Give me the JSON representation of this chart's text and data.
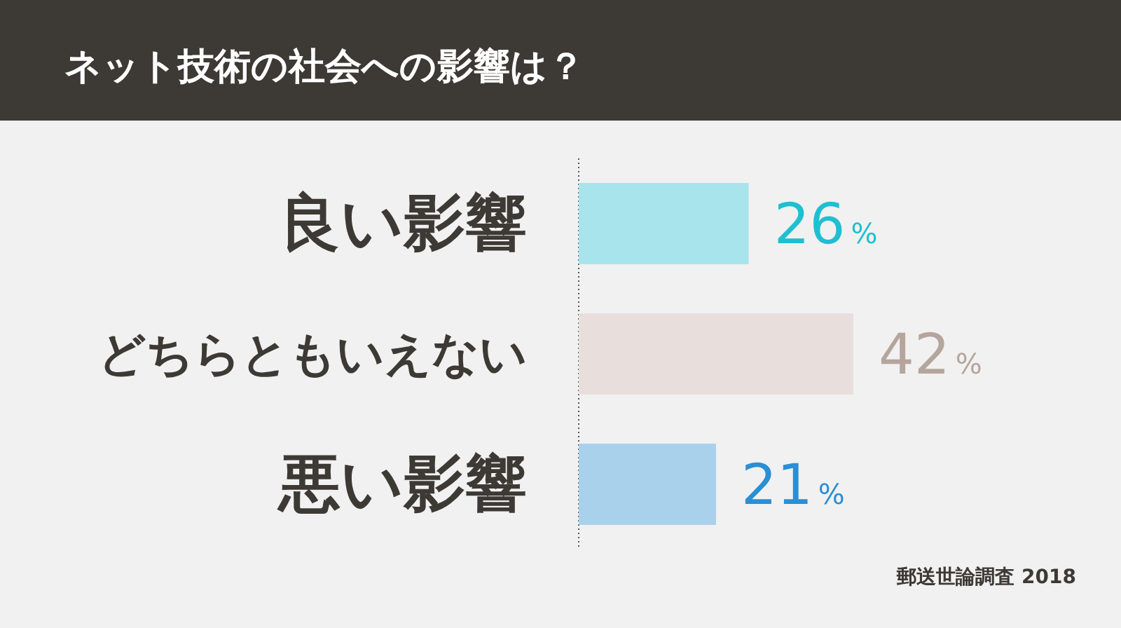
{
  "chart_data": {
    "type": "bar",
    "orientation": "horizontal",
    "title": "ネット技術の社会への影響は？",
    "categories": [
      "良い影響",
      "どちらともいえない",
      "悪い影響"
    ],
    "values": [
      26,
      42,
      21
    ],
    "colors": [
      "#a8e4ec",
      "#e8dfdc",
      "#aad1eb"
    ],
    "value_labels": [
      "26%",
      "42%",
      "21%"
    ],
    "annotations": [
      "郵送世論調査 2018"
    ]
  }
}
